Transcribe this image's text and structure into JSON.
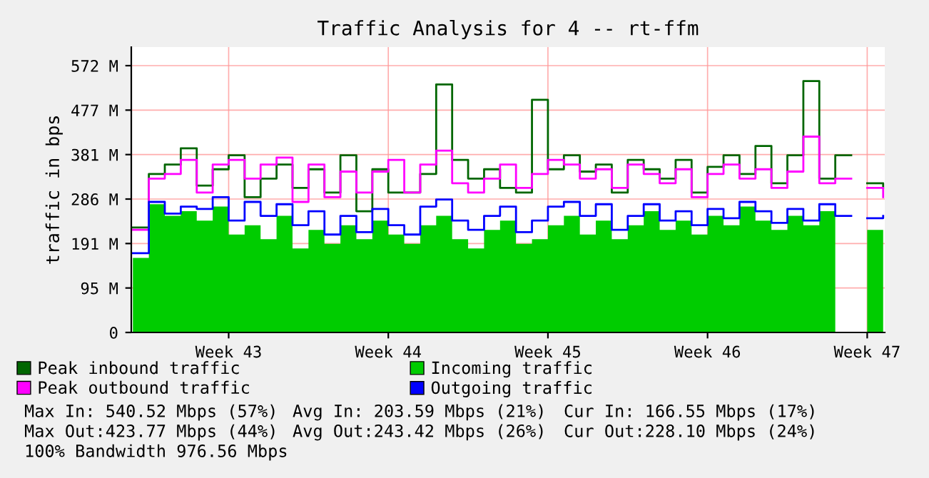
{
  "chart_data": {
    "type": "step",
    "title": "Traffic Analysis for 4 -- rt-ffm",
    "ylabel": "traffic in bps",
    "categories": [
      null,
      null,
      null,
      null,
      null,
      null,
      "Week 43",
      null,
      null,
      null,
      null,
      null,
      null,
      null,
      null,
      null,
      "Week 44",
      null,
      null,
      null,
      null,
      null,
      null,
      null,
      null,
      null,
      "Week 45",
      null,
      null,
      null,
      null,
      null,
      null,
      null,
      null,
      null,
      "Week 46",
      null,
      null,
      null,
      null,
      null,
      null,
      null,
      null,
      null,
      "Week 47",
      null
    ],
    "ylim": [
      0,
      612
    ],
    "yticks": [
      0,
      {
        "value": 95.37,
        "label": "95 M"
      },
      {
        "value": 190.73,
        "label": "191 M"
      },
      {
        "value": 286.1,
        "label": "286 M"
      },
      {
        "value": 381.47,
        "label": "381 M"
      },
      {
        "value": 476.84,
        "label": "477 M"
      },
      {
        "value": 572.2,
        "label": "572 M"
      }
    ],
    "series": [
      {
        "name": "Peak inbound traffic",
        "color": "#006600",
        "values": [
          225,
          340,
          360,
          395,
          315,
          350,
          380,
          290,
          330,
          360,
          310,
          350,
          300,
          380,
          260,
          350,
          300,
          300,
          340,
          532,
          370,
          330,
          350,
          310,
          300,
          499,
          350,
          380,
          345,
          360,
          300,
          370,
          350,
          330,
          370,
          300,
          355,
          380,
          340,
          400,
          320,
          380,
          539,
          330,
          380,
          null,
          320,
          310
        ]
      },
      {
        "name": "Peak outbound traffic",
        "color": "#ff00ff",
        "values": [
          220,
          330,
          340,
          370,
          300,
          360,
          370,
          330,
          360,
          375,
          280,
          360,
          290,
          345,
          300,
          345,
          370,
          300,
          360,
          390,
          320,
          300,
          330,
          360,
          310,
          340,
          370,
          360,
          330,
          350,
          310,
          360,
          340,
          320,
          350,
          290,
          340,
          360,
          330,
          350,
          310,
          345,
          420,
          320,
          330,
          null,
          310,
          290
        ]
      },
      {
        "name": "Incoming traffic",
        "type": "area",
        "color": "#00cc00",
        "values": [
          160,
          275,
          250,
          260,
          240,
          270,
          210,
          230,
          200,
          250,
          180,
          220,
          190,
          230,
          200,
          240,
          210,
          190,
          230,
          250,
          200,
          180,
          220,
          240,
          190,
          200,
          230,
          250,
          210,
          240,
          200,
          230,
          260,
          220,
          240,
          210,
          250,
          230,
          270,
          240,
          220,
          250,
          230,
          260,
          240,
          null,
          220,
          170
        ]
      },
      {
        "name": "Outgoing traffic",
        "color": "#0000ff",
        "values": [
          170,
          280,
          255,
          270,
          265,
          290,
          240,
          280,
          250,
          275,
          230,
          260,
          210,
          250,
          215,
          265,
          230,
          210,
          270,
          285,
          240,
          220,
          250,
          270,
          215,
          240,
          270,
          280,
          250,
          275,
          220,
          250,
          275,
          240,
          260,
          230,
          265,
          245,
          280,
          260,
          235,
          265,
          240,
          275,
          250,
          null,
          245,
          250
        ]
      }
    ],
    "grid": true,
    "legend": "bottom",
    "line_style": "solid",
    "marker": "none",
    "annotations": [
      "Max In: 540.52 Mbps (57%)",
      "Avg In: 203.59 Mbps (21%)",
      "Cur In: 166.55 Mbps (17%)",
      "Max Out:423.77 Mbps (44%)",
      "Avg Out:243.42 Mbps (26%)",
      "Cur Out:228.10 Mbps (24%)",
      "100% Bandwidth 976.56 Mbps"
    ]
  }
}
